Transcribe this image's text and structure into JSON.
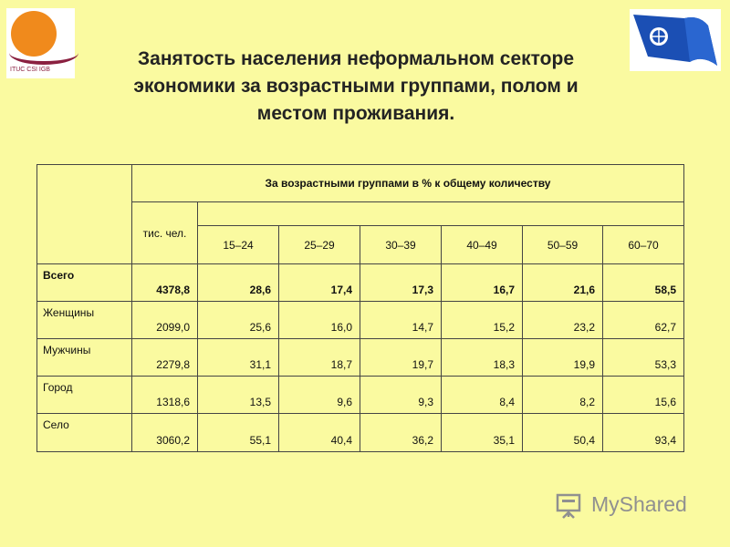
{
  "logo_left": {
    "text": "ITUC CSI IGB",
    "colors": {
      "sun": "#f08a1c",
      "arc": "#8a2040"
    }
  },
  "logo_right": {
    "icon": "flag-logo-icon"
  },
  "title": {
    "line1": "Занятость населения  неформальном секторе",
    "line2": "экономики за возрастными группами, полом и",
    "line3": "местом проживания."
  },
  "table": {
    "group_header": "За возрастными группами в % к общему количеству",
    "thousands_header": "тис. чел.",
    "age_groups": [
      "15–24",
      "25–29",
      "30–39",
      "40–49",
      "50–59",
      "60–70"
    ],
    "rows": [
      {
        "label": "Всего",
        "total": "4378,8",
        "values": [
          "28,6",
          "17,4",
          "17,3",
          "16,7",
          "21,6",
          "58,5"
        ]
      },
      {
        "label": "Женщины",
        "total": "2099,0",
        "values": [
          "25,6",
          "16,0",
          "14,7",
          "15,2",
          "23,2",
          "62,7"
        ]
      },
      {
        "label": "Мужчины",
        "total": "2279,8",
        "values": [
          "31,1",
          "18,7",
          "19,7",
          "18,3",
          "19,9",
          "53,3"
        ]
      },
      {
        "label": "Город",
        "total": "1318,6",
        "values": [
          "13,5",
          "9,6",
          "9,3",
          "8,4",
          "8,2",
          "15,6"
        ]
      },
      {
        "label": "Село",
        "total": "3060,2",
        "values": [
          "55,1",
          "40,4",
          "36,2",
          "35,1",
          "50,4",
          "93,4"
        ]
      }
    ]
  },
  "watermark": {
    "text": "MyShared",
    "icon": "presentation-board-icon"
  },
  "colors": {
    "background": "#fafaa0",
    "title": "#232323",
    "border": "#444444",
    "watermark": "#909090"
  }
}
